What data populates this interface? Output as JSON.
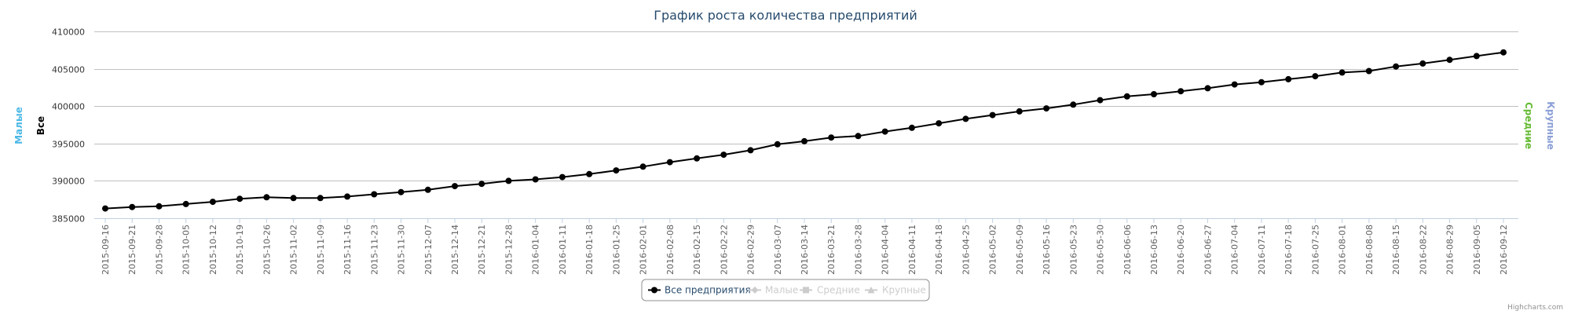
{
  "chart_data": {
    "type": "line",
    "title": "График роста количества предприятий",
    "x": [
      "2015-09-16",
      "2015-09-21",
      "2015-09-28",
      "2015-10-05",
      "2015-10-12",
      "2015-10-19",
      "2015-10-26",
      "2015-11-02",
      "2015-11-09",
      "2015-11-16",
      "2015-11-23",
      "2015-11-30",
      "2015-12-07",
      "2015-12-14",
      "2015-12-21",
      "2015-12-28",
      "2016-01-04",
      "2016-01-11",
      "2016-01-18",
      "2016-01-25",
      "2016-02-01",
      "2016-02-08",
      "2016-02-15",
      "2016-02-22",
      "2016-02-29",
      "2016-03-07",
      "2016-03-14",
      "2016-03-21",
      "2016-03-28",
      "2016-04-04",
      "2016-04-11",
      "2016-04-18",
      "2016-04-25",
      "2016-05-02",
      "2016-05-09",
      "2016-05-16",
      "2016-05-23",
      "2016-05-30",
      "2016-06-06",
      "2016-06-13",
      "2016-06-20",
      "2016-06-27",
      "2016-07-04",
      "2016-07-11",
      "2016-07-18",
      "2016-07-25",
      "2016-08-01",
      "2016-08-08",
      "2016-08-15",
      "2016-08-22",
      "2016-08-29",
      "2016-09-05",
      "2016-09-12"
    ],
    "ylim": [
      385000,
      410000
    ],
    "yticks": [
      "385000",
      "390000",
      "395000",
      "400000",
      "405000",
      "410000"
    ],
    "grid": true,
    "legend_position": "bottom-center",
    "axes_titles": {
      "left_outer": "Малые",
      "left_inner": "Все",
      "right_inner": "Средние",
      "right_outer": "Крупные"
    },
    "axis_colors": {
      "left_outer": "#4cb8e6",
      "left_inner": "#000000",
      "right_inner": "#66bb33",
      "right_outer": "#8b9fd6"
    },
    "series": [
      {
        "name": "Все предприятия",
        "color": "#000000",
        "marker": "circle",
        "visible": true,
        "values": [
          386300,
          386500,
          386600,
          386900,
          387200,
          387600,
          387800,
          387700,
          387700,
          387900,
          388200,
          388500,
          388800,
          389300,
          389600,
          390000,
          390200,
          390500,
          390900,
          391400,
          391900,
          392500,
          393000,
          393500,
          394100,
          394900,
          395300,
          395800,
          396000,
          396600,
          397100,
          397700,
          398300,
          398800,
          399300,
          399700,
          400200,
          400800,
          401300,
          401600,
          402000,
          402400,
          402900,
          403200,
          403600,
          404000,
          404500,
          404700,
          405300,
          405700,
          406200,
          406700,
          407200
        ]
      },
      {
        "name": "Малые",
        "color": "#cccccc",
        "marker": "diamond",
        "visible": false
      },
      {
        "name": "Средние",
        "color": "#cccccc",
        "marker": "square",
        "visible": false
      },
      {
        "name": "Крупные",
        "color": "#cccccc",
        "marker": "triangle",
        "visible": false
      }
    ],
    "credit": "Highcharts.com"
  }
}
